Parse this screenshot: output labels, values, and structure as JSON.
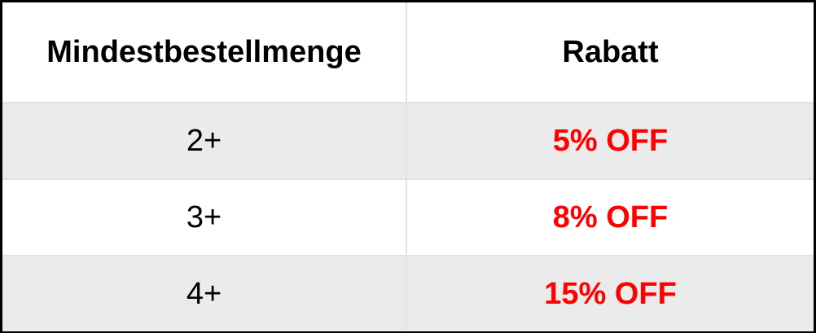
{
  "table": {
    "headers": [
      "Mindestbestellmenge",
      "Rabatt"
    ],
    "rows": [
      {
        "quantity": "2+",
        "discount": "5% OFF"
      },
      {
        "quantity": "3+",
        "discount": "8% OFF"
      },
      {
        "quantity": "4+",
        "discount": "15% OFF"
      }
    ]
  },
  "colors": {
    "discount_text": "#ff0000",
    "shaded_row": "#ebebeb",
    "border": "#000000"
  }
}
